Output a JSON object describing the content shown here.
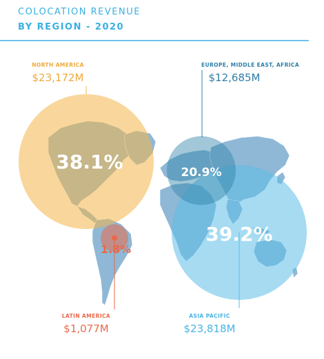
{
  "title": {
    "line1": "COLOCATION REVENUE",
    "line2": "BY REGION - 2020"
  },
  "colors": {
    "title": "#3ab0e2",
    "north_america": "#f4b549",
    "latin_america": "#e9694a",
    "emea": "#2f82a8",
    "asia_pacific": "#5cbde8",
    "map_land": "#8fb8d6"
  },
  "chart_data": {
    "type": "bubble-map",
    "unit": "$M",
    "regions": [
      {
        "key": "north_america",
        "label": "NORTH AMERICA",
        "value_label": "$23,172M",
        "value": 23172,
        "percent": 38.1,
        "percent_label": "38.1%",
        "color": "#f4b549",
        "text_color": "#f0a93a"
      },
      {
        "key": "emea",
        "label": "EUROPE, MIDDLE EAST, AFRICA",
        "value_label": "$12,685M",
        "value": 12685,
        "percent": 20.9,
        "percent_label": "20.9%",
        "color": "#2f82a8",
        "text_color": "#2e7fa6"
      },
      {
        "key": "asia_pacific",
        "label": "ASIA PACIFIC",
        "value_label": "$23,818M",
        "value": 23818,
        "percent": 39.2,
        "percent_label": "39.2%",
        "color": "#5cbde8",
        "text_color": "#49b3e2"
      },
      {
        "key": "latin_america",
        "label": "LATIN AMERICA",
        "value_label": "$1,077M",
        "value": 1077,
        "percent": 1.8,
        "percent_label": "1.8%",
        "color": "#e9694a",
        "text_color": "#e9694a"
      }
    ]
  }
}
